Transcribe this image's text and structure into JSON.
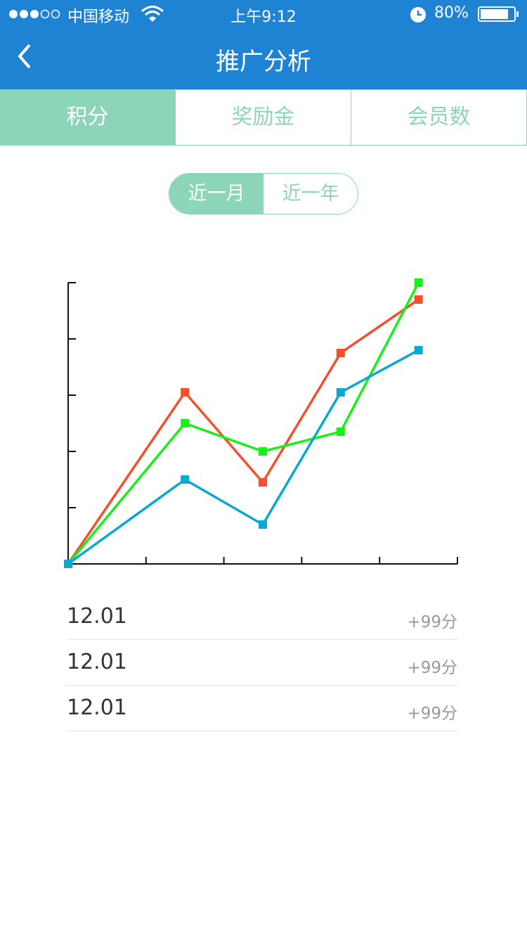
{
  "status": {
    "carrier": "中国移动",
    "time": "上午9:12",
    "battery": "80%"
  },
  "nav": {
    "title": "推广分析"
  },
  "tabs": {
    "items": [
      "积分",
      "奖励金",
      "会员数"
    ],
    "active": 0
  },
  "range": {
    "items": [
      "近一月",
      "近一年"
    ],
    "active": 0
  },
  "chart_data": {
    "type": "line",
    "x": [
      0,
      1.5,
      2.5,
      3.5,
      4.5
    ],
    "xlim": [
      0,
      5
    ],
    "xticks": [
      0,
      1,
      2,
      3,
      4,
      5
    ],
    "ylim": [
      0,
      5
    ],
    "yticks": [
      0,
      1,
      2,
      3,
      4,
      5
    ],
    "series": [
      {
        "color": "#f4502e",
        "values": [
          0,
          3.05,
          1.45,
          3.75,
          4.7
        ]
      },
      {
        "color": "#19f01a",
        "values": [
          0,
          2.5,
          2,
          2.35,
          5
        ]
      },
      {
        "color": "#0aa8d4",
        "values": [
          0,
          1.5,
          0.7,
          3.05,
          3.8
        ]
      }
    ]
  },
  "list": [
    {
      "date": "12.01",
      "value": "+99分"
    },
    {
      "date": "12.01",
      "value": "+99分"
    },
    {
      "date": "12.01",
      "value": "+99分"
    }
  ]
}
